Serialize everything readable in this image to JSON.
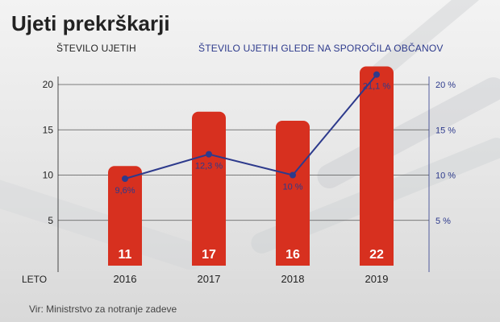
{
  "title": "Ujeti prekrškarji",
  "left_axis_title": "ŠTEVILO UJETIH",
  "right_axis_title": "ŠTEVILO UJETIH GLEDE NA SPOROČILA OBČANOV",
  "x_axis_name": "LETO",
  "source": "Vir: Ministrstvo za notranje zadeve",
  "colors": {
    "bar": "#d7301f",
    "line": "#2d3a8c",
    "grid": "#555555"
  },
  "chart_data": {
    "type": "bar",
    "categories": [
      "2016",
      "2017",
      "2018",
      "2019"
    ],
    "series": [
      {
        "values": [
          11,
          17,
          16,
          22
        ],
        "labels": [
          "11",
          "17",
          "16",
          "22"
        ]
      },
      {
        "type": "line",
        "axis": "right",
        "values": [
          9.6,
          12.3,
          10,
          21.1
        ],
        "labels": [
          "9,6%",
          "12,3 %",
          "10 %",
          "21,1 %"
        ]
      }
    ],
    "ylim": [
      0,
      20
    ],
    "yticks": [
      "5",
      "10",
      "15",
      "20"
    ],
    "yticks_values": [
      5,
      10,
      15,
      20
    ],
    "y2lim": [
      0,
      20
    ],
    "y2ticks": [
      "5 %",
      "10 %",
      "15 %",
      "20 %"
    ],
    "y2ticks_values": [
      5,
      10,
      15,
      20
    ],
    "grid": true
  }
}
